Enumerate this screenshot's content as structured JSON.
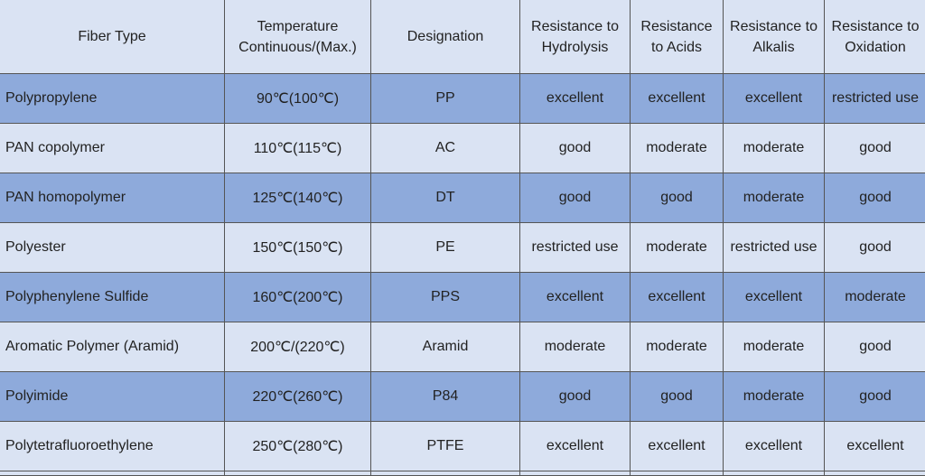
{
  "table": {
    "header": [
      [
        "Fiber Type"
      ],
      [
        "Temperature",
        "Continuous/(Max.)"
      ],
      [
        "Designation"
      ],
      [
        "Resistance to",
        "Hydrolysis"
      ],
      [
        "Resistance",
        "to Acids"
      ],
      [
        "Resistance to",
        "Alkalis"
      ],
      [
        "Resistance to",
        "Oxidation"
      ]
    ],
    "rows": [
      [
        "Polypropylene",
        "90℃(100℃)",
        "PP",
        "excellent",
        "excellent",
        "excellent",
        "restricted use"
      ],
      [
        "PAN copolymer",
        "110℃(115℃)",
        "AC",
        "good",
        "moderate",
        "moderate",
        "good"
      ],
      [
        "PAN homopolymer",
        "125℃(140℃)",
        "DT",
        "good",
        "good",
        "moderate",
        "good"
      ],
      [
        "Polyester",
        "150℃(150℃)",
        "PE",
        "restricted use",
        "moderate",
        "restricted use",
        "good"
      ],
      [
        "Polyphenylene Sulfide",
        "160℃(200℃)",
        "PPS",
        "excellent",
        "excellent",
        "excellent",
        "moderate"
      ],
      [
        "Aromatic Polymer (Aramid)",
        "200℃/(220℃)",
        "Aramid",
        "moderate",
        "moderate",
        "moderate",
        "good"
      ],
      [
        "Polyimide",
        "220℃(260℃)",
        "P84",
        "good",
        "good",
        "moderate",
        "good"
      ],
      [
        "Polytetrafluoroethylene",
        "250℃(280℃)",
        "PTFE",
        "excellent",
        "excellent",
        "excellent",
        "excellent"
      ]
    ]
  }
}
